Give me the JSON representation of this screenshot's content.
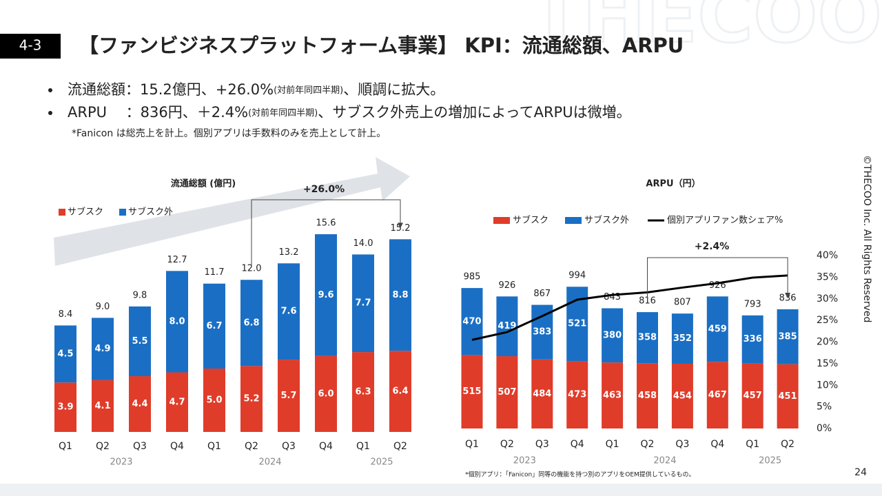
{
  "watermark": "THECOO",
  "header": {
    "section": "4-3",
    "title": "【ファンビジネスプラットフォーム事業】 KPI：流通総額、ARPU"
  },
  "bullets": [
    {
      "text": "流通総額：15.2億円、+26.0%",
      "note": "(対前年同四半期)",
      "tail": "、順調に拡大。"
    },
    {
      "text": "ARPU　 ：836円、＋2.4%",
      "note": "(対前年同四半期)",
      "tail": "、サブスク外売上の増加によってARPUは微増。"
    }
  ],
  "bullet_note": "*Fanicon は総売上を計上。個別アプリは手数料のみを売上として計上。",
  "chart_data": [
    {
      "type": "bar",
      "stacked": true,
      "title": "流通総額 (億円)",
      "categories": [
        "Q1",
        "Q2",
        "Q3",
        "Q4",
        "Q1",
        "Q2",
        "Q3",
        "Q4",
        "Q1",
        "Q2"
      ],
      "years": [
        "2023",
        "2024",
        "2025"
      ],
      "series": [
        {
          "name": "サブスク",
          "color": "#e03c2a",
          "values": [
            3.9,
            4.1,
            4.4,
            4.7,
            5.0,
            5.2,
            5.7,
            6.0,
            6.3,
            6.4
          ],
          "value_labels": [
            "3.9",
            "4.1",
            "4.4",
            "4.7",
            "5.0",
            "5.2",
            "5.7",
            "6.0",
            "6.3",
            "6.4"
          ]
        },
        {
          "name": "サブスク外",
          "color": "#1a6fc4",
          "values": [
            4.5,
            4.9,
            5.5,
            8.0,
            6.7,
            6.8,
            7.6,
            9.6,
            7.7,
            8.8
          ],
          "value_labels": [
            "4.5",
            "4.9",
            "5.5",
            "8.0",
            "6.7",
            "6.8",
            "7.6",
            "9.6",
            "7.7",
            "8.8"
          ]
        }
      ],
      "totals": [
        8.4,
        9.0,
        9.8,
        12.7,
        11.7,
        12.0,
        13.2,
        15.6,
        14.0,
        15.2
      ],
      "total_labels": [
        "8.4",
        "9.0",
        "9.8",
        "12.7",
        "11.7",
        "12.0",
        "13.2",
        "15.6",
        "14.0",
        "15.2"
      ],
      "annotation": "+26.0%"
    },
    {
      "type": "combo",
      "stacked": true,
      "title": "ARPU（円）",
      "categories": [
        "Q1",
        "Q2",
        "Q3",
        "Q4",
        "Q1",
        "Q2",
        "Q3",
        "Q4",
        "Q1",
        "Q2"
      ],
      "years": [
        "2023",
        "2024",
        "2025"
      ],
      "series": [
        {
          "name": "サブスク",
          "color": "#e03c2a",
          "values": [
            515,
            507,
            484,
            473,
            463,
            458,
            454,
            467,
            457,
            451
          ]
        },
        {
          "name": "サブスク外",
          "color": "#1a6fc4",
          "values": [
            470,
            419,
            383,
            521,
            380,
            358,
            352,
            459,
            336,
            385
          ]
        },
        {
          "name": "個別アプリファン数シェア%",
          "color": "#000000",
          "type": "line",
          "axis": "y2",
          "values": [
            20.5,
            22.3,
            26.0,
            29.8,
            30.9,
            31.5,
            32.6,
            33.6,
            34.9,
            35.4
          ]
        }
      ],
      "totals": [
        985,
        926,
        867,
        994,
        843,
        816,
        807,
        926,
        793,
        836
      ],
      "y2lim": [
        0,
        40
      ],
      "y2ticks": [
        {
          "value": 0,
          "label": "0%"
        },
        {
          "value": 5,
          "label": "5%"
        },
        {
          "value": 10,
          "label": "10%"
        },
        {
          "value": 15,
          "label": "15%"
        },
        {
          "value": 20,
          "label": "20%"
        },
        {
          "value": 25,
          "label": "25%"
        },
        {
          "value": 30,
          "label": "30%"
        },
        {
          "value": 35,
          "label": "35%"
        },
        {
          "value": 40,
          "label": "40%"
        }
      ],
      "annotation": "+2.4%",
      "footnote": "*個別アプリ：「Fanicon」同等の機能を持つ別のアプリをOEM提供しているもの。"
    }
  ],
  "copyright": "©THECOO Inc. All Rights Reserved",
  "page_number": "24"
}
